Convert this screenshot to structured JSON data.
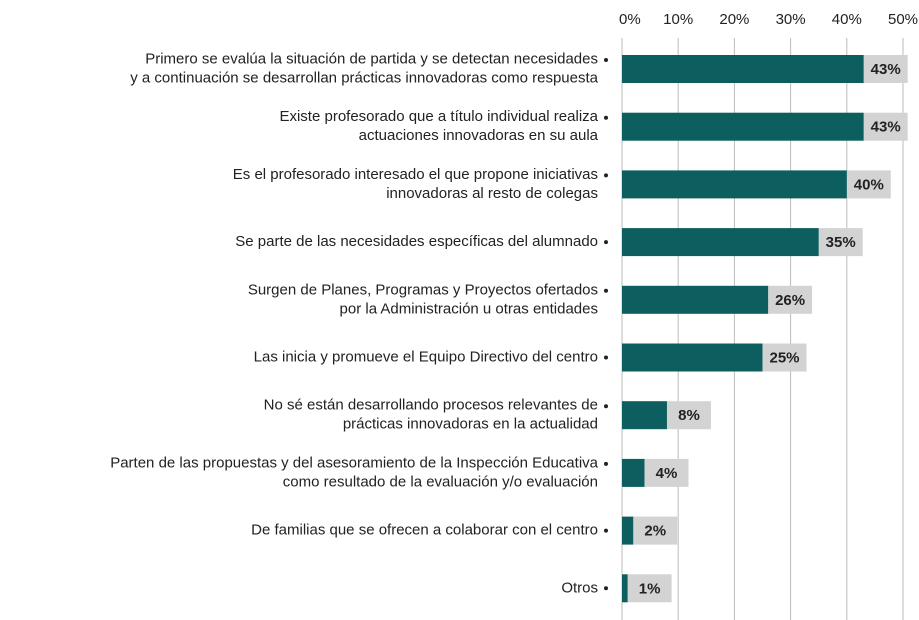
{
  "chart_data": {
    "type": "bar",
    "orientation": "horizontal",
    "categories": [
      "Primero se evalúa la situación de partida y se detectan necesidades\ny a continuación se desarrollan prácticas innovadoras como respuesta",
      "Existe profesorado que a título individual realiza\nactuaciones innovadoras en su aula",
      "Es el profesorado interesado el que propone iniciativas\ninnovadoras al resto de colegas",
      "Se parte de las necesidades específicas del alumnado",
      "Surgen de Planes, Programas y Proyectos ofertados\npor la Administración u otras entidades",
      "Las inicia y promueve el Equipo Directivo del centro",
      "No sé están desarrollando procesos relevantes de\nprácticas innovadoras en la actualidad",
      "Parten de las propuestas y del asesoramiento de la Inspección Educativa\ncomo resultado de la evaluación y/o evaluación",
      "De familias que se ofrecen a colaborar con el centro",
      "Otros"
    ],
    "values": [
      43,
      43,
      40,
      35,
      26,
      25,
      8,
      4,
      2,
      1
    ],
    "value_labels": [
      "43%",
      "43%",
      "40%",
      "35%",
      "26%",
      "25%",
      "8%",
      "4%",
      "2%",
      "1%"
    ],
    "color": "#0d5f5f",
    "xlim": [
      0,
      50
    ],
    "xticks": [
      {
        "value": 0,
        "label": "0%"
      },
      {
        "value": 10,
        "label": "10%"
      },
      {
        "value": 20,
        "label": "20%"
      },
      {
        "value": 30,
        "label": "30%"
      },
      {
        "value": 40,
        "label": "40%"
      },
      {
        "value": 50,
        "label": "50%"
      }
    ],
    "grid": true
  }
}
